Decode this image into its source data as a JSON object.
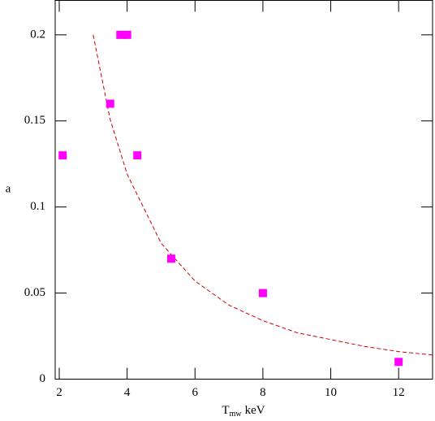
{
  "chart_data": {
    "type": "scatter",
    "x_label": {
      "main": "T",
      "sub": "mw",
      "unit": "keV"
    },
    "y_label": "a",
    "xlim": [
      1.88,
      13
    ],
    "ylim": [
      0,
      0.22
    ],
    "xticks": [
      2,
      4,
      6,
      8,
      10,
      12
    ],
    "yticks": [
      0,
      0.05,
      0.1,
      0.15,
      0.2
    ],
    "series": [
      {
        "color": "#ff00ff",
        "x": [
          2.1,
          3.5,
          3.8,
          4.0,
          4.3,
          5.3,
          8.0,
          12.0
        ],
        "values": [
          0.13,
          0.16,
          0.2,
          0.2,
          0.13,
          0.07,
          0.05,
          0.01
        ]
      }
    ],
    "fit": {
      "color": "#cc0000",
      "x": [
        3,
        3.5,
        4,
        5,
        6,
        7,
        8,
        9,
        10,
        11,
        12,
        13
      ],
      "values": [
        0.2,
        0.151,
        0.119,
        0.079,
        0.057,
        0.043,
        0.034,
        0.027,
        0.023,
        0.019,
        0.016,
        0.014
      ]
    }
  }
}
